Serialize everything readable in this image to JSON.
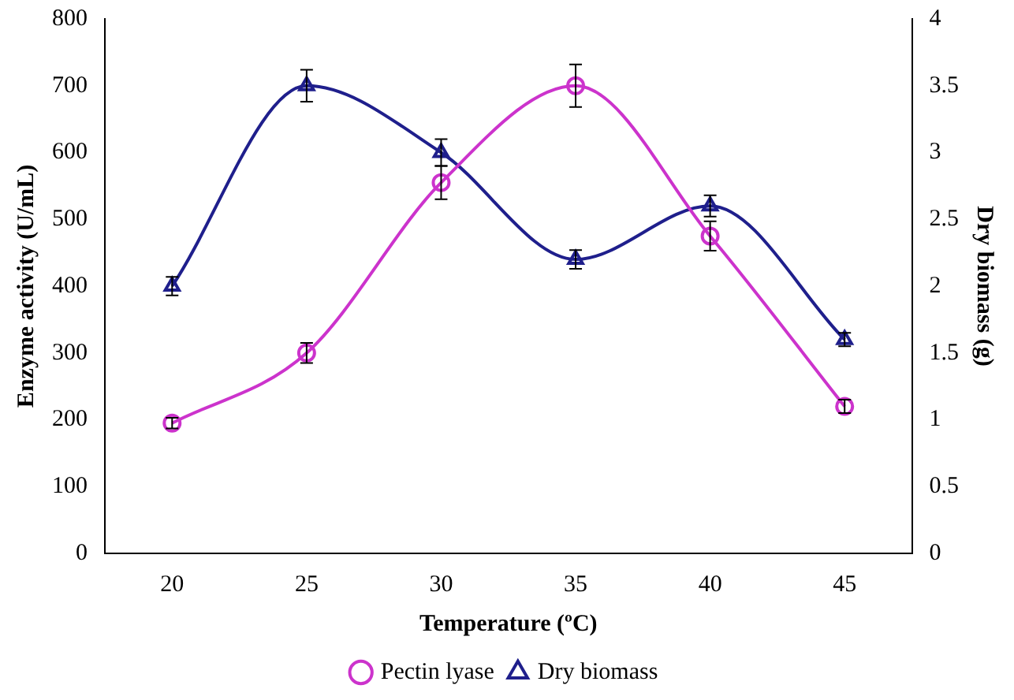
{
  "chart_data": {
    "type": "line",
    "xlabel": "Temperature (ºC)",
    "ylabel": "Enzyme activity (U/mL)",
    "y2label": "Dry biomass (g)",
    "categories": [
      "20",
      "25",
      "30",
      "35",
      "40",
      "45"
    ],
    "series": [
      {
        "name": "Pectin lyase",
        "color": "#cc33cc",
        "marker": "circle",
        "values": [
          195,
          300,
          555,
          700,
          475,
          220
        ],
        "errors": [
          8,
          15,
          25,
          32,
          22,
          10
        ]
      },
      {
        "name": "Dry biomass",
        "color": "#1f1f8c",
        "marker": "triangle",
        "axis": "y2",
        "values": [
          2.0,
          3.5,
          3.0,
          2.2,
          2.6,
          1.6
        ],
        "errors": [
          0.07,
          0.12,
          0.1,
          0.07,
          0.08,
          0.05
        ]
      }
    ],
    "ylim": [
      0,
      800
    ],
    "yticks": [
      0,
      100,
      200,
      300,
      400,
      500,
      600,
      700,
      800
    ],
    "y2lim": [
      0,
      4
    ],
    "y2ticks": [
      0,
      0.5,
      1,
      1.5,
      2,
      2.5,
      3,
      3.5,
      4
    ],
    "grid": false,
    "legend": "bottom",
    "line_style": "solid"
  }
}
